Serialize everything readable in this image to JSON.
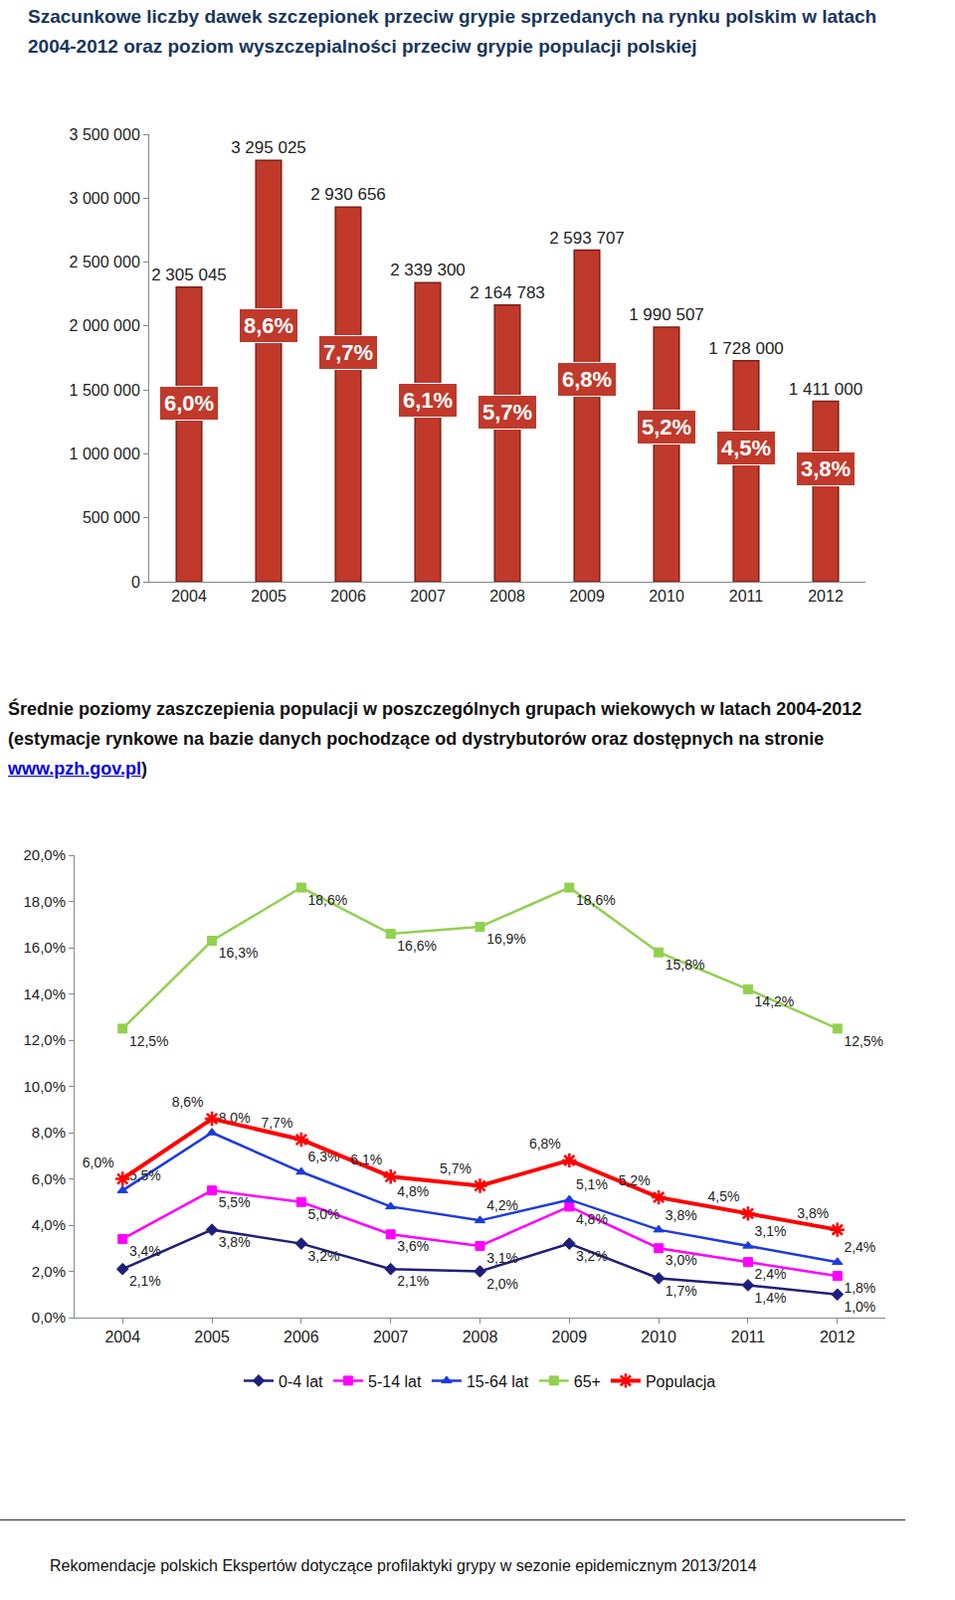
{
  "chart_data": [
    {
      "type": "bar",
      "title": "Szacunkowe liczby dawek szczepionek przeciw grypie sprzedanych na rynku polskim w latach 2004-2012 oraz poziom wyszczepialności przeciw grypie populacji polskiej",
      "categories": [
        "2004",
        "2005",
        "2006",
        "2007",
        "2008",
        "2009",
        "2010",
        "2011",
        "2012"
      ],
      "values": [
        2305045,
        3295025,
        2930656,
        2339300,
        2164783,
        2593707,
        1990507,
        1728000,
        1411000
      ],
      "value_labels": [
        "2 305 045",
        "3 295 025",
        "2 930 656",
        "2 339 300",
        "2 164 783",
        "2 593 707",
        "1 990 507",
        "1 728 000",
        "1 411 000"
      ],
      "coverage": [
        6.0,
        8.6,
        7.7,
        6.1,
        5.7,
        6.8,
        5.2,
        4.5,
        3.8
      ],
      "coverage_labels": [
        "6,0%",
        "8,6%",
        "7,7%",
        "6,1%",
        "5,7%",
        "6,8%",
        "5,2%",
        "4,5%",
        "3,8%"
      ],
      "color": "#C0392B",
      "ylim": [
        0,
        3500000
      ],
      "yticks": [
        0,
        {
          "value": 500000,
          "label": "500 000"
        },
        {
          "value": 1000000,
          "label": "1 000 000"
        },
        {
          "value": 1500000,
          "label": "1 500 000"
        },
        {
          "value": 2000000,
          "label": "2 000 000"
        },
        {
          "value": 2500000,
          "label": "2 500 000"
        },
        {
          "value": 3000000,
          "label": "3 000 000"
        },
        {
          "value": 3500000,
          "label": "3 500 000"
        }
      ],
      "grid": false,
      "data_labels": true
    },
    {
      "type": "line",
      "title": "Średnie poziomy zaszczepienia populacji w poszczególnych grupach wiekowych w latach 2004-2012 (estymacje rynkowe na bazie danych pochodzące od dystrybutorów oraz dostępnych na stronie www.pzh.gov.pl)",
      "categories": [
        "2004",
        "2005",
        "2006",
        "2007",
        "2008",
        "2009",
        "2010",
        "2011",
        "2012"
      ],
      "series": [
        {
          "name": "0-4 lat",
          "color": "#1F1F7A",
          "marker": "diamond",
          "values": [
            2.1,
            3.8,
            3.2,
            2.1,
            2.0,
            3.2,
            1.7,
            1.4,
            1.0
          ],
          "value_labels": [
            "2,1%",
            "3,8%",
            "3,2%",
            "2,1%",
            "2,0%",
            "3,2%",
            "1,7%",
            "1,4%",
            "1,0%"
          ]
        },
        {
          "name": "5-14 lat",
          "color": "#FF00FF",
          "marker": "square",
          "values": [
            3.4,
            5.5,
            5.0,
            3.6,
            3.1,
            4.8,
            3.0,
            2.4,
            1.8
          ],
          "value_labels": [
            "3,4%",
            "5,5%",
            "5,0%",
            "3,6%",
            "3,1%",
            "4,8%",
            "3,0%",
            "2,4%",
            "1,8%"
          ]
        },
        {
          "name": "15-64 lat",
          "color": "#1C3AE0",
          "marker": "triangle-up",
          "values": [
            5.5,
            8.0,
            6.3,
            4.8,
            4.2,
            5.1,
            3.8,
            3.1,
            2.4
          ],
          "value_labels": [
            "5,5%",
            "8,0%",
            "6,3%",
            "4,8%",
            "4,2%",
            "5,1%",
            "3,8%",
            "3,1%",
            "2,4%"
          ]
        },
        {
          "name": "65+",
          "color": "#92D050",
          "marker": "square-x",
          "values": [
            12.5,
            16.3,
            18.6,
            16.6,
            16.9,
            18.6,
            15.8,
            14.2,
            12.5
          ],
          "value_labels": [
            "12,5%",
            "16,3%",
            "18,6%",
            "16,6%",
            "16,9%",
            "18,6%",
            "15,8%",
            "14,2%",
            "12,5%"
          ]
        },
        {
          "name": "Populacja",
          "color": "#FF0000",
          "marker": "asterisk",
          "values": [
            6.0,
            8.6,
            7.7,
            6.1,
            5.7,
            6.8,
            5.2,
            4.5,
            3.8
          ],
          "value_labels": [
            "6,0%",
            "8,6%",
            "7,7%",
            "6,1%",
            "5,7%",
            "6,8%",
            "5,2%",
            "4,5%",
            "3,8%"
          ]
        }
      ],
      "ylim": [
        0,
        20
      ],
      "yticks": [
        {
          "value": 0,
          "label": "0,0%"
        },
        {
          "value": 2,
          "label": "2,0%"
        },
        {
          "value": 4,
          "label": "4,0%"
        },
        {
          "value": 6,
          "label": "6,0%"
        },
        {
          "value": 8,
          "label": "8,0%"
        },
        {
          "value": 10,
          "label": "10,0%"
        },
        {
          "value": 12,
          "label": "12,0%"
        },
        {
          "value": 14,
          "label": "14,0%"
        },
        {
          "value": 16,
          "label": "16,0%"
        },
        {
          "value": 18,
          "label": "18,0%"
        },
        {
          "value": 20,
          "label": "20,0%"
        }
      ],
      "grid": false,
      "data_labels": true,
      "legend": "bottom"
    }
  ],
  "footer": "Rekomendacje polskich Ekspertów dotyczące profilaktyki grypy w sezonie epidemicznym 2013/2014"
}
